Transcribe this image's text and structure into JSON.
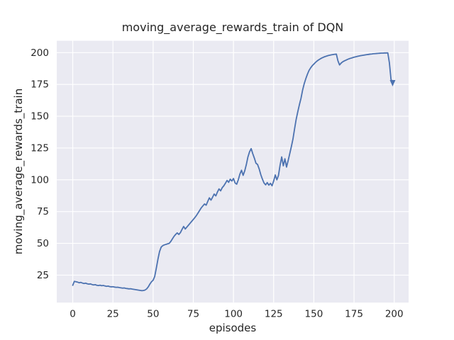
{
  "chart_data": {
    "type": "line",
    "title": "moving_average_rewards_train of DQN",
    "xlabel": "episodes",
    "ylabel": "moving_average_rewards_train",
    "x_ticks": [
      0,
      25,
      50,
      75,
      100,
      125,
      150,
      175,
      200
    ],
    "y_ticks": [
      25,
      50,
      75,
      100,
      125,
      150,
      175,
      200
    ],
    "xlim": [
      -9.95,
      208.95
    ],
    "ylim": [
      3.4,
      209.3
    ],
    "grid": true,
    "legend": "none",
    "style": {
      "figure_bg": "#ffffff",
      "plot_bg": "#eaeaf2",
      "grid_color": "#ffffff",
      "line_color": "#4c72b0",
      "text_color": "#262626"
    },
    "series": [
      {
        "name": "moving_average_rewards_train",
        "x_start": 0,
        "x_step": 1,
        "end_marker": "arrowhead-down",
        "y": [
          17.0,
          20.1,
          19.8,
          19.5,
          19.0,
          19.3,
          18.8,
          18.4,
          18.7,
          18.2,
          17.9,
          18.1,
          17.6,
          17.3,
          17.5,
          17.0,
          16.8,
          17.1,
          16.7,
          16.9,
          16.5,
          16.2,
          16.4,
          16.0,
          15.8,
          15.9,
          15.6,
          15.4,
          15.5,
          15.2,
          15.0,
          14.8,
          14.9,
          14.6,
          14.4,
          14.2,
          14.3,
          14.0,
          13.8,
          13.6,
          13.4,
          13.2,
          13.0,
          12.8,
          12.9,
          13.3,
          14.2,
          15.8,
          18.0,
          19.8,
          21.0,
          24.0,
          30.5,
          37.5,
          43.5,
          47.0,
          48.2,
          48.8,
          49.2,
          49.6,
          50.0,
          51.5,
          53.5,
          55.5,
          57.0,
          58.2,
          57.0,
          58.5,
          61.0,
          63.3,
          61.3,
          62.8,
          64.3,
          65.8,
          67.3,
          68.8,
          70.3,
          72.0,
          74.0,
          76.0,
          78.0,
          79.5,
          81.0,
          80.0,
          83.0,
          85.8,
          84.0,
          86.3,
          88.8,
          87.3,
          90.3,
          92.8,
          91.3,
          93.8,
          95.3,
          97.3,
          99.5,
          98.0,
          100.5,
          99.0,
          101.0,
          97.5,
          96.5,
          100.0,
          104.5,
          107.5,
          103.5,
          107.0,
          112.0,
          118.0,
          122.0,
          124.5,
          120.5,
          117.0,
          113.0,
          112.0,
          108.5,
          104.0,
          100.5,
          97.5,
          96.0,
          97.8,
          95.8,
          97.2,
          95.3,
          99.0,
          103.8,
          100.0,
          103.5,
          111.5,
          118.0,
          111.0,
          116.5,
          110.0,
          115.0,
          120.5,
          126.0,
          132.0,
          140.0,
          147.5,
          153.5,
          159.0,
          164.0,
          170.5,
          175.5,
          179.5,
          183.0,
          186.0,
          188.0,
          189.7,
          191.0,
          192.3,
          193.4,
          194.3,
          195.1,
          195.8,
          196.4,
          196.9,
          197.3,
          197.7,
          198.0,
          198.3,
          198.5,
          198.7,
          198.8,
          193.5,
          190.3,
          191.8,
          192.8,
          193.5,
          194.1,
          194.7,
          195.2,
          195.6,
          196.0,
          196.4,
          196.7,
          197.0,
          197.3,
          197.6,
          197.8,
          198.0,
          198.2,
          198.4,
          198.6,
          198.8,
          198.9,
          199.1,
          199.2,
          199.3,
          199.4,
          199.5,
          199.6,
          199.6,
          199.7,
          199.7,
          199.8,
          192.0,
          179.0,
          176.5
        ]
      }
    ]
  }
}
